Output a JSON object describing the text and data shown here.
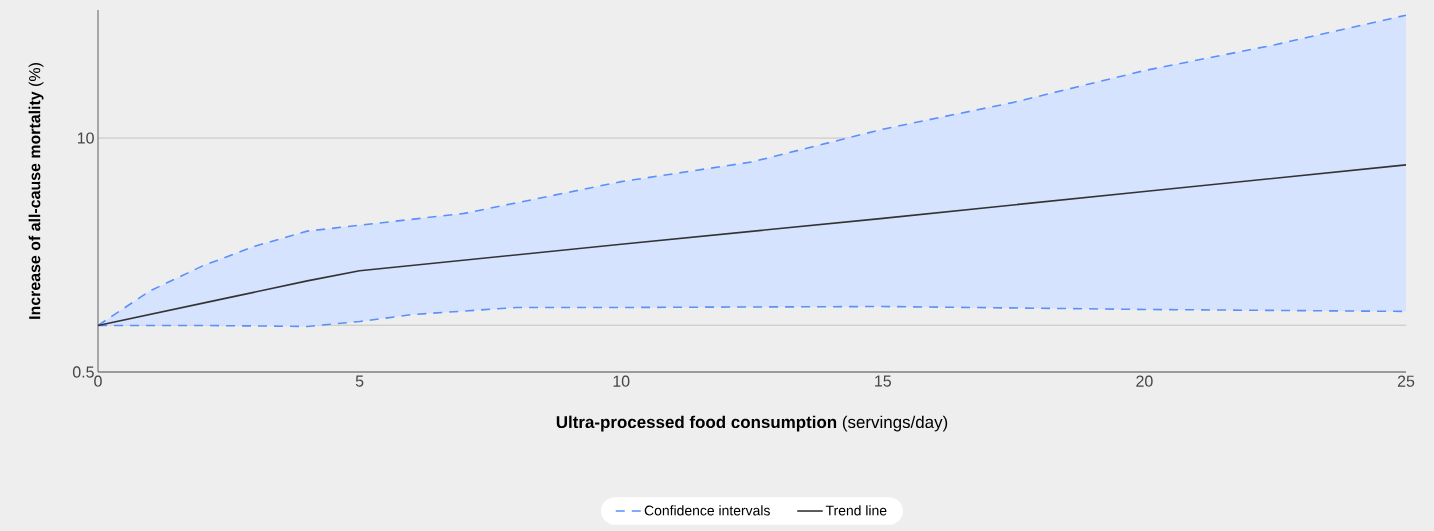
{
  "chart_data": {
    "type": "line",
    "xlabel": "**Ultra-processed food consumption** (servings/day)",
    "ylabel": "**Increase of all-cause mortality** (%)",
    "xlim": [
      0,
      25
    ],
    "xticks": [
      0,
      5,
      10,
      15,
      20,
      25
    ],
    "ylim": [
      0.5,
      15.2
    ],
    "yticks": [
      0.5,
      {
        "value": 2.4,
        "label": null
      },
      10
    ],
    "grid": "y",
    "legend": "bottom",
    "marker": "none",
    "series": [
      {
        "name": "Confidence intervals",
        "color": "#5b8ff9",
        "line_style": "dashed",
        "x": [
          0,
          1,
          2,
          3,
          4,
          5,
          7,
          10,
          12.5,
          15,
          17.5,
          20,
          22.5,
          25
        ],
        "values": [
          2.39,
          3.8,
          4.81,
          5.61,
          6.22,
          6.46,
          6.94,
          8.23,
          9.03,
          10.36,
          11.45,
          12.74,
          13.79,
          14.99
        ]
      },
      {
        "color": "#5b8ff9",
        "line_style": "dashed",
        "x": [
          0,
          2,
          4,
          5,
          6,
          8,
          10,
          15,
          20,
          25
        ],
        "values": [
          2.39,
          2.39,
          2.35,
          2.55,
          2.83,
          3.12,
          3.12,
          3.16,
          3.04,
          2.96
        ]
      },
      {
        "name": "Trend line",
        "color": "#333333",
        "line_style": "solid",
        "x": [
          0,
          2.5,
          4,
          5,
          10,
          15,
          20,
          25
        ],
        "values": [
          2.39,
          3.52,
          4.2,
          4.61,
          5.69,
          6.74,
          7.83,
          8.91
        ]
      }
    ]
  }
}
